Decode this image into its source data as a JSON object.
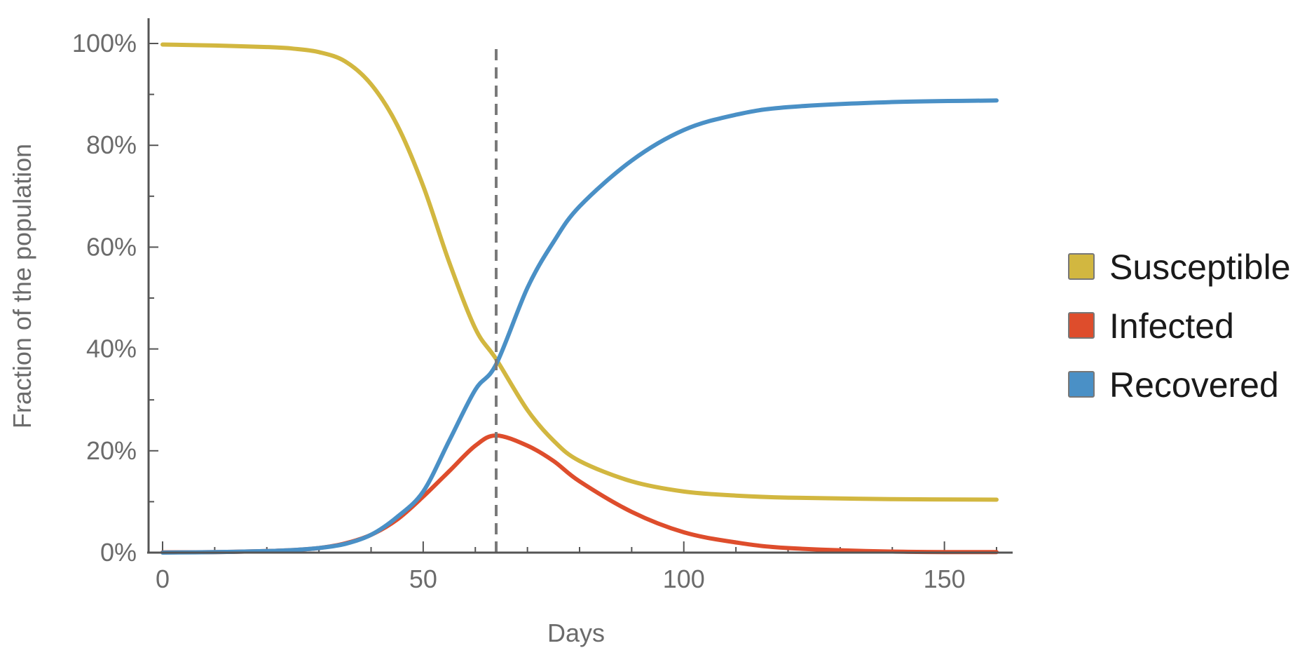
{
  "chart_data": {
    "type": "line",
    "xlabel": "Days",
    "ylabel": "Fraction of the population",
    "xlim": [
      0,
      160
    ],
    "ylim": [
      0,
      1
    ],
    "x_ticks": [
      0,
      50,
      100,
      150
    ],
    "x_tick_labels": [
      "0",
      "50",
      "100",
      "150"
    ],
    "y_ticks": [
      0,
      0.2,
      0.4,
      0.6,
      0.8,
      1.0
    ],
    "y_tick_labels": [
      "0%",
      "20%",
      "40%",
      "60%",
      "80%",
      "100%"
    ],
    "grid": false,
    "legend_position": "right",
    "peak_marker": {
      "x": 64,
      "style": "dashed",
      "color": "#7a7a7a"
    },
    "series": [
      {
        "name": "Susceptible",
        "color": "#d2b740",
        "x": [
          0,
          10,
          20,
          25,
          30,
          35,
          40,
          45,
          50,
          55,
          60,
          64,
          70,
          75,
          80,
          90,
          100,
          110,
          120,
          140,
          160
        ],
        "values": [
          0.998,
          0.996,
          0.993,
          0.99,
          0.983,
          0.965,
          0.92,
          0.84,
          0.72,
          0.57,
          0.44,
          0.38,
          0.28,
          0.22,
          0.18,
          0.14,
          0.12,
          0.112,
          0.108,
          0.105,
          0.104
        ]
      },
      {
        "name": "Infected",
        "color": "#de4d2c",
        "x": [
          0,
          10,
          20,
          25,
          30,
          35,
          40,
          45,
          50,
          55,
          60,
          64,
          70,
          75,
          80,
          90,
          100,
          110,
          120,
          140,
          160
        ],
        "values": [
          0.0005,
          0.001,
          0.003,
          0.005,
          0.009,
          0.018,
          0.035,
          0.065,
          0.11,
          0.16,
          0.21,
          0.23,
          0.21,
          0.18,
          0.14,
          0.08,
          0.04,
          0.02,
          0.009,
          0.002,
          0.001
        ]
      },
      {
        "name": "Recovered",
        "color": "#4a90c6",
        "x": [
          0,
          10,
          20,
          25,
          30,
          35,
          40,
          45,
          50,
          55,
          60,
          64,
          70,
          75,
          80,
          90,
          100,
          110,
          120,
          140,
          160
        ],
        "values": [
          0.0,
          0.001,
          0.003,
          0.005,
          0.009,
          0.017,
          0.035,
          0.07,
          0.12,
          0.22,
          0.32,
          0.37,
          0.52,
          0.61,
          0.68,
          0.77,
          0.83,
          0.86,
          0.875,
          0.885,
          0.888
        ]
      }
    ]
  }
}
